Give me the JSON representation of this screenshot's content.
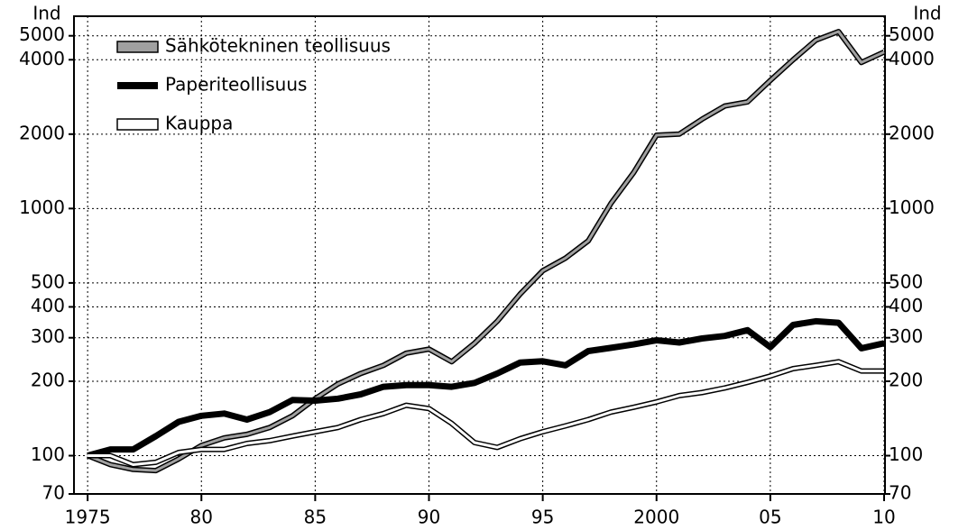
{
  "chart_data": {
    "type": "line",
    "y_label": "Ind",
    "y2_label": "Ind",
    "log_y": true,
    "grid": true,
    "legend": "upper left",
    "x": [
      1975,
      1976,
      1977,
      1978,
      1979,
      1980,
      1981,
      1982,
      1983,
      1984,
      1985,
      1986,
      1987,
      1988,
      1989,
      1990,
      1991,
      1992,
      1993,
      1994,
      1995,
      1996,
      1997,
      1998,
      1999,
      2000,
      2001,
      2002,
      2003,
      2004,
      2005,
      2006,
      2007,
      2008,
      2009,
      2010
    ],
    "xlim": [
      1974.4,
      2010.04
    ],
    "xticks": [
      {
        "value": 1975,
        "label": "1975"
      },
      {
        "value": 1980,
        "label": "80"
      },
      {
        "value": 1985,
        "label": "85"
      },
      {
        "value": 1990,
        "label": "90"
      },
      {
        "value": 1995,
        "label": "95"
      },
      {
        "value": 2000,
        "label": "2000"
      },
      {
        "value": 2005,
        "label": "05"
      },
      {
        "value": 2010,
        "label": "10"
      }
    ],
    "ylim": [
      70,
      6000
    ],
    "yticks": [
      70,
      100,
      200,
      300,
      400,
      500,
      1000,
      2000,
      4000,
      5000
    ],
    "series": [
      {
        "name": "Sähkötekninen teollisuus",
        "color": "#a0a0a0",
        "values": [
          100,
          92,
          88,
          87,
          97,
          110,
          118,
          122,
          130,
          145,
          170,
          195,
          215,
          232,
          260,
          270,
          240,
          285,
          350,
          450,
          560,
          630,
          740,
          1050,
          1400,
          1980,
          2000,
          2300,
          2600,
          2700,
          3300,
          4000,
          4800,
          5200,
          3900,
          4300
        ]
      },
      {
        "name": "Paperiteollisuus",
        "color": "#000000",
        "values": [
          100,
          106,
          106,
          120,
          137,
          145,
          148,
          140,
          150,
          168,
          167,
          170,
          177,
          190,
          193,
          193,
          190,
          197,
          215,
          238,
          241,
          232,
          265,
          273,
          282,
          293,
          287,
          298,
          305,
          322,
          275,
          338,
          350,
          345,
          272,
          285
        ]
      },
      {
        "name": "Kauppa",
        "color": "#ffffff",
        "values": [
          100,
          100,
          92,
          94,
          103,
          106,
          106,
          112,
          115,
          120,
          125,
          130,
          140,
          148,
          160,
          155,
          135,
          113,
          108,
          117,
          125,
          132,
          140,
          150,
          157,
          165,
          175,
          180,
          188,
          198,
          210,
          225,
          232,
          240,
          220,
          220
        ]
      }
    ]
  }
}
